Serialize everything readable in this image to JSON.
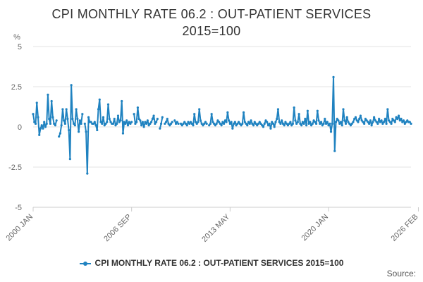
{
  "chart_data": {
    "type": "line",
    "title_lines": [
      "CPI MONTHLY RATE 06.2 : OUT-PATIENT SERVICES",
      "2015=100"
    ],
    "ylabel": "%",
    "ylim": [
      -5,
      5
    ],
    "yticks": [
      {
        "value": 5,
        "label": "5"
      },
      {
        "value": 2.5,
        "label": "2.5"
      },
      {
        "value": 0,
        "label": "0"
      },
      {
        "value": -2.5,
        "label": "-2.5"
      },
      {
        "value": -5,
        "label": "-5"
      }
    ],
    "xticks": [
      {
        "index": 0,
        "label": "2000 JAN"
      },
      {
        "index": 80,
        "label": "2006 SEP"
      },
      {
        "index": 160,
        "label": "2013 MAY"
      },
      {
        "index": 240,
        "label": "2020 JAN"
      },
      {
        "index": 313,
        "label": "2026 FEB"
      }
    ],
    "x_start": "2000 JAN",
    "x_end": "2026 FEB",
    "grid": "horizontal",
    "legend_position": "bottom",
    "series": [
      {
        "name": "CPI MONTHLY RATE 06.2 : OUT-PATIENT SERVICES 2015=100",
        "color": "#1f82c0",
        "values": [
          0.8,
          0.3,
          0.2,
          1.5,
          0.6,
          -0.5,
          -0.1,
          0.1,
          -0.1,
          0.3,
          0,
          0.2,
          2,
          0.5,
          0.2,
          1.6,
          0.6,
          0.2,
          0.1,
          0.4,
          null,
          -0.6,
          -0.4,
          0.1,
          1.1,
          0.4,
          0.2,
          1.1,
          0.5,
          -0.2,
          -2,
          2.6,
          0.5,
          0.2,
          0.1,
          1.1,
          0.5,
          -0.3,
          0.4,
          0.2,
          0.8,
          null,
          0.2,
          -0.3,
          -2.9,
          0.6,
          0.3,
          0.3,
          0.2,
          0.2,
          0.3,
          0.1,
          -0.2,
          1.1,
          1.7,
          0.3,
          0.2,
          0.6,
          0.1,
          0.2,
          0.3,
          1.4,
          0.5,
          0.3,
          0.2,
          0.2,
          0.5,
          0.1,
          0.2,
          0.7,
          0.3,
          0.4,
          1.6,
          -0.4,
          0.3,
          0.2,
          0.4,
          0.1,
          0.3,
          0.2,
          0.3,
          null,
          0.8,
          0.2,
          0.3,
          1.2,
          0.5,
          0.4,
          0.1,
          0.3,
          0,
          0.3,
          0.2,
          0.4,
          0.1,
          0.2,
          0.3,
          0.5,
          0.7,
          0.2,
          0.3,
          0.5,
          null,
          -0.1,
          0.2,
          0.6,
          null,
          0.2,
          0.3,
          0.5,
          0.2,
          0.1,
          0.2,
          0.3,
          null,
          0.4,
          0.2,
          0.3,
          0.2,
          null,
          0.2,
          0.1,
          0.2,
          0.3,
          0.2,
          0.1,
          0.3,
          0.2,
          0.3,
          0.2,
          0.1,
          0.8,
          0.3,
          0.2,
          0.3,
          1.1,
          0.4,
          0.2,
          0.1,
          0.2,
          0.3,
          0.2,
          null,
          0.1,
          0.2,
          0.8,
          0.3,
          0.2,
          0.1,
          0.2,
          0.4,
          0.3,
          0.2,
          0.1,
          0.3,
          0.2,
          0.4,
          0.3,
          0.9,
          0.4,
          0.2,
          0.3,
          -0.1,
          0.2,
          0.3,
          0.1,
          0.2,
          0.3,
          0.2,
          0.1,
          0.2,
          0.9,
          0.3,
          0.2,
          0.1,
          0.3,
          0.2,
          0.4,
          0.2,
          0.1,
          0.3,
          0.2,
          0.1,
          0.2,
          0.3,
          0.2,
          0.1,
          0,
          0.2,
          0.4,
          0.3,
          0.1,
          0.2,
          -0.1,
          0.3,
          0.2,
          0,
          0.3,
          0.5,
          1.1,
          0.3,
          0.2,
          0.4,
          0.2,
          0.1,
          0.3,
          0.2,
          0.1,
          0.2,
          0.3,
          0.1,
          0.2,
          1.2,
          0.4,
          0.2,
          0.3,
          0.8,
          0.2,
          0.1,
          0.3,
          0.2,
          0.5,
          0.1,
          1,
          0.2,
          0.3,
          0.1,
          0.2,
          0.4,
          0.3,
          0.2,
          1,
          0.4,
          0.2,
          0.3,
          0.1,
          0.2,
          0.5,
          0.2,
          0.3,
          0.1,
          0.2,
          -0.3,
          0.2,
          3.1,
          -1.5,
          0.3,
          0.5,
          0.4,
          0.2,
          0.3,
          0.1,
          1.1,
          0.4,
          0.2,
          0.6,
          0.3,
          0.2,
          0.1,
          0.2,
          0.3,
          0.5,
          0.6,
          0.4,
          0.3,
          0.5,
          0.7,
          0.4,
          0.3,
          0.2,
          0.5,
          0.4,
          0.3,
          0.2,
          0.4,
          0.1,
          0.3,
          0.6,
          0.4,
          0.3,
          0.2,
          0.5,
          0.3,
          0.4,
          0.2,
          0.3,
          0.5,
          0.2,
          1.1,
          0.4,
          0.3,
          0.2,
          0.5,
          0.4,
          0.3,
          0.6,
          0.5,
          0.7,
          0.4,
          0.5,
          0.3,
          0.4,
          0.2,
          0.3,
          0.4,
          0.3,
          0.3,
          0.2
        ]
      }
    ]
  },
  "source_label": "Source:"
}
